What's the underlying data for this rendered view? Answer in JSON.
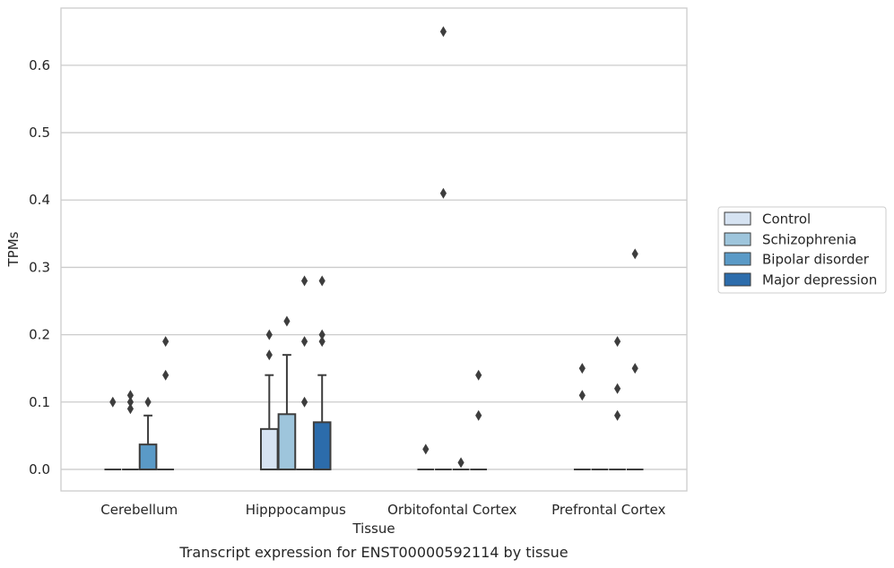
{
  "chart_data": {
    "type": "box",
    "caption": "Transcript expression for ENST00000592114 by tissue",
    "xlabel": "Tissue",
    "ylabel": "TPMs",
    "ylim": [
      -0.032,
      0.685
    ],
    "yticks": [
      0.0,
      0.1,
      0.2,
      0.3,
      0.4,
      0.5,
      0.6
    ],
    "ytick_labels": [
      "0.0",
      "0.1",
      "0.2",
      "0.3",
      "0.4",
      "0.5",
      "0.6"
    ],
    "grid": "horizontal",
    "legend_position": "right",
    "categories": [
      "Cerebellum",
      "Hipppocampus",
      "Orbitofontal Cortex",
      "Prefrontal Cortex"
    ],
    "series": [
      {
        "name": "Control",
        "color": "#d6e3f2",
        "boxes": [
          {
            "q1": 0,
            "median": 0,
            "q3": 0,
            "whisker_low": 0,
            "whisker_high": 0,
            "outliers": [
              0.1
            ]
          },
          {
            "q1": 0,
            "median": 0,
            "q3": 0.06,
            "whisker_low": 0,
            "whisker_high": 0.14,
            "outliers": [
              0.17,
              0.2
            ]
          },
          {
            "q1": 0,
            "median": 0,
            "q3": 0,
            "whisker_low": 0,
            "whisker_high": 0,
            "outliers": [
              0.03
            ]
          },
          {
            "q1": 0,
            "median": 0,
            "q3": 0,
            "whisker_low": 0,
            "whisker_high": 0,
            "outliers": [
              0.11,
              0.15
            ]
          }
        ]
      },
      {
        "name": "Schizophrenia",
        "color": "#9ec5dc",
        "boxes": [
          {
            "q1": 0,
            "median": 0,
            "q3": 0,
            "whisker_low": 0,
            "whisker_high": 0,
            "outliers": [
              0.09,
              0.1,
              0.11
            ]
          },
          {
            "q1": 0,
            "median": 0,
            "q3": 0.082,
            "whisker_low": 0,
            "whisker_high": 0.17,
            "outliers": [
              0.22
            ]
          },
          {
            "q1": 0,
            "median": 0,
            "q3": 0,
            "whisker_low": 0,
            "whisker_high": 0,
            "outliers": [
              0.41,
              0.65
            ]
          },
          {
            "q1": 0,
            "median": 0,
            "q3": 0,
            "whisker_low": 0,
            "whisker_high": 0,
            "outliers": []
          }
        ]
      },
      {
        "name": "Bipolar disorder",
        "color": "#5a9ac7",
        "boxes": [
          {
            "q1": 0,
            "median": 0,
            "q3": 0.037,
            "whisker_low": 0,
            "whisker_high": 0.08,
            "outliers": [
              0.1
            ]
          },
          {
            "q1": 0,
            "median": 0,
            "q3": 0,
            "whisker_low": 0,
            "whisker_high": 0,
            "outliers": [
              0.1,
              0.19,
              0.28
            ]
          },
          {
            "q1": 0,
            "median": 0,
            "q3": 0,
            "whisker_low": 0,
            "whisker_high": 0,
            "outliers": [
              0.01
            ]
          },
          {
            "q1": 0,
            "median": 0,
            "q3": 0,
            "whisker_low": 0,
            "whisker_high": 0,
            "outliers": [
              0.08,
              0.12,
              0.19
            ]
          }
        ]
      },
      {
        "name": "Major depression",
        "color": "#2c6cab",
        "boxes": [
          {
            "q1": 0,
            "median": 0,
            "q3": 0,
            "whisker_low": 0,
            "whisker_high": 0,
            "outliers": [
              0.14,
              0.19
            ]
          },
          {
            "q1": 0,
            "median": 0,
            "q3": 0.07,
            "whisker_low": 0,
            "whisker_high": 0.14,
            "outliers": [
              0.19,
              0.2,
              0.28
            ]
          },
          {
            "q1": 0,
            "median": 0,
            "q3": 0,
            "whisker_low": 0,
            "whisker_high": 0,
            "outliers": [
              0.08,
              0.14
            ]
          },
          {
            "q1": 0,
            "median": 0,
            "q3": 0,
            "whisker_low": 0,
            "whisker_high": 0,
            "outliers": [
              0.15,
              0.32
            ]
          }
        ]
      }
    ]
  }
}
